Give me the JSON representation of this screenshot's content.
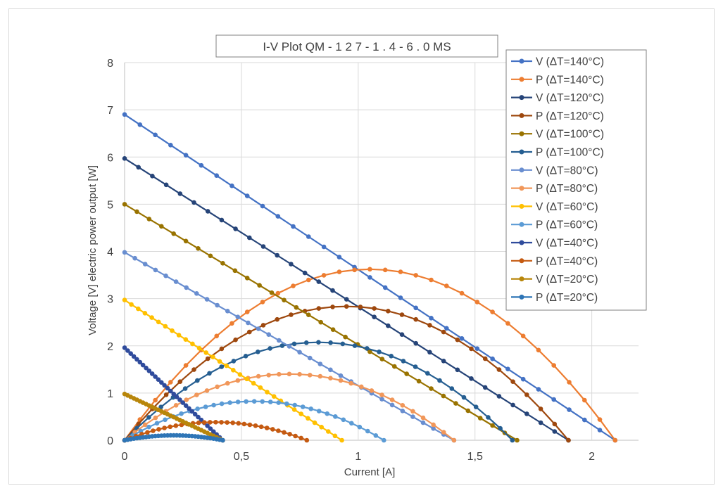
{
  "chart_data": {
    "type": "scatter",
    "title": "I-V Plot QM - 1 2 7 - 1 . 4 - 6 . 0 MS",
    "xlabel": "Current [A]",
    "ylabel": "Voltage [V] electric power output [W]",
    "xlim": [
      0,
      2.2
    ],
    "ylim": [
      0,
      8
    ],
    "xticks": [
      "0",
      "0,5",
      "1",
      "1,5",
      "2"
    ],
    "yticks": [
      "0",
      "1",
      "2",
      "3",
      "4",
      "5",
      "6",
      "7",
      "8"
    ],
    "grid": true,
    "legend_position": "top-right",
    "series": [
      {
        "name": "V (ΔT=140°C)",
        "kind": "V",
        "color": "#4472C4",
        "v0": 6.9,
        "imax": 2.1
      },
      {
        "name": "P (ΔT=140°C)",
        "kind": "P",
        "color": "#ED7D31",
        "v0": 6.9,
        "imax": 2.1
      },
      {
        "name": "V (ΔT=120°C)",
        "kind": "V",
        "color": "#264478",
        "v0": 5.97,
        "imax": 1.9
      },
      {
        "name": "P (ΔT=120°C)",
        "kind": "P",
        "color": "#9E480E",
        "v0": 5.97,
        "imax": 1.9
      },
      {
        "name": "V (ΔT=100°C)",
        "kind": "V",
        "color": "#997300",
        "v0": 5.0,
        "imax": 1.68
      },
      {
        "name": "P (ΔT=100°C)",
        "kind": "P",
        "color": "#255E91",
        "v0": 5.0,
        "imax": 1.66
      },
      {
        "name": "V (ΔT=80°C)",
        "kind": "V",
        "color": "#698ED0",
        "v0": 3.98,
        "imax": 1.41
      },
      {
        "name": "P (ΔT=80°C)",
        "kind": "P",
        "color": "#F1975A",
        "v0": 3.98,
        "imax": 1.41
      },
      {
        "name": "V (ΔT=60°C)",
        "kind": "V",
        "color": "#FFC000",
        "v0": 2.97,
        "imax": 0.93
      },
      {
        "name": "P (ΔT=60°C)",
        "kind": "P",
        "color": "#5B9BD5",
        "v0": 2.97,
        "imax": 1.11
      },
      {
        "name": "V (ΔT=40°C)",
        "kind": "V",
        "color": "#2F4B9C",
        "v0": 1.96,
        "imax": 0.42
      },
      {
        "name": "P (ΔT=40°C)",
        "kind": "P",
        "color": "#C55A11",
        "v0": 1.96,
        "imax": 0.78
      },
      {
        "name": "V (ΔT=20°C)",
        "kind": "V",
        "color": "#B8860B",
        "v0": 0.98,
        "imax": 0.42
      },
      {
        "name": "P (ΔT=20°C)",
        "kind": "P",
        "color": "#2E75B6",
        "v0": 0.98,
        "imax": 0.42
      }
    ]
  }
}
